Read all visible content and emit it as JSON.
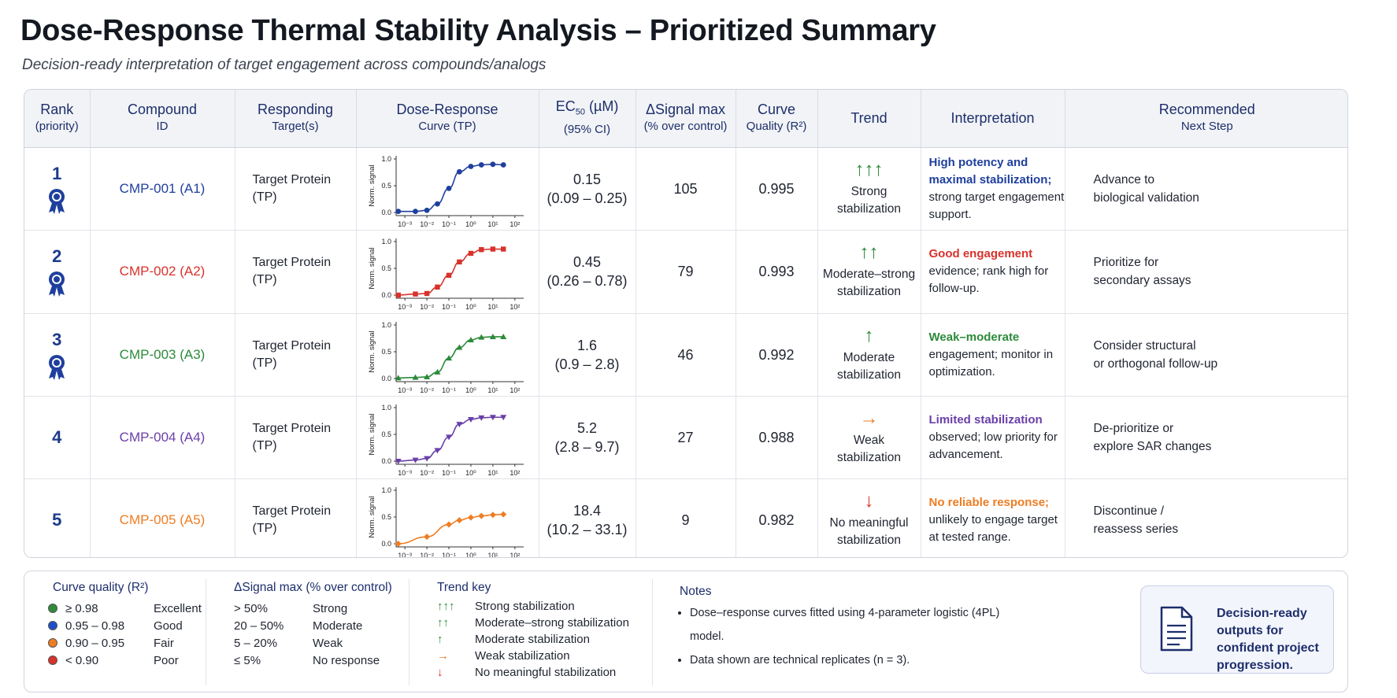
{
  "title": "Dose-Response Thermal Stability Analysis – Prioritized Summary",
  "subtitle": "Decision-ready interpretation of target engagement across compounds/analogs",
  "headers": {
    "rank": [
      "Rank",
      "(priority)"
    ],
    "compound": [
      "Compound",
      "ID"
    ],
    "target": [
      "Responding",
      "Target(s)"
    ],
    "curve": [
      "Dose-Response",
      "Curve (TP)"
    ],
    "ec50_pre": "EC",
    "ec50_sub": "50",
    "ec50_post": " (µM)",
    "ec50_ci": "(95% CI)",
    "signal": [
      "ΔSignal max",
      "(% over control)"
    ],
    "quality": [
      "Curve",
      "Quality (R²)"
    ],
    "trend": "Trend",
    "interp": "Interpretation",
    "next": [
      "Recommended",
      "Next Step"
    ]
  },
  "rows": [
    {
      "rank": "1",
      "award": true,
      "id": "CMP-001 (A1)",
      "color": "#1f3f9e",
      "target1": "Target Protein",
      "target2": "(TP)",
      "ec50": "0.15",
      "ci": "(0.09 – 0.25)",
      "signal": "105",
      "r2": "0.995",
      "arrows": "↑↑↑",
      "arrow_color": "#2e8b3a",
      "trend1": "Strong",
      "trend2": "stabilization",
      "interp_lead": "High potency and maximal stabilization;",
      "interp_rest": "strong target engagement support.",
      "interp_color": "#1f3f9e",
      "next1": "Advance to",
      "next2": "biological validation"
    },
    {
      "rank": "2",
      "award": true,
      "id": "CMP-002 (A2)",
      "color": "#d8322b",
      "target1": "Target Protein",
      "target2": "(TP)",
      "ec50": "0.45",
      "ci": "(0.26 – 0.78)",
      "signal": "79",
      "r2": "0.993",
      "arrows": "↑↑",
      "arrow_color": "#2e8b3a",
      "trend1": "Moderate–strong",
      "trend2": "stabilization",
      "interp_lead": "Good engagement",
      "interp_rest": "evidence; rank high for follow-up.",
      "interp_color": "#d8322b",
      "next1": "Prioritize for",
      "next2": "secondary assays"
    },
    {
      "rank": "3",
      "award": true,
      "id": "CMP-003 (A3)",
      "color": "#2b8a3a",
      "target1": "Target Protein",
      "target2": "(TP)",
      "ec50": "1.6",
      "ci": "(0.9 – 2.8)",
      "signal": "46",
      "r2": "0.992",
      "arrows": "↑",
      "arrow_color": "#2e8b3a",
      "trend1": "Moderate",
      "trend2": "stabilization",
      "interp_lead": "Weak–moderate",
      "interp_rest": "engagement; monitor in optimization.",
      "interp_color": "#2b8a3a",
      "next1": "Consider structural",
      "next2": "or orthogonal follow-up"
    },
    {
      "rank": "4",
      "award": false,
      "id": "CMP-004 (A4)",
      "color": "#6a3fa8",
      "target1": "Target Protein",
      "target2": "(TP)",
      "ec50": "5.2",
      "ci": "(2.8 – 9.7)",
      "signal": "27",
      "r2": "0.988",
      "arrows": "→",
      "arrow_color": "#ee7d22",
      "trend1": "Weak",
      "trend2": "stabilization",
      "interp_lead": "Limited stabilization",
      "interp_rest": "observed; low priority for advancement.",
      "interp_color": "#6a3fa8",
      "next1": "De-prioritize or",
      "next2": "explore SAR changes"
    },
    {
      "rank": "5",
      "award": false,
      "id": "CMP-005 (A5)",
      "color": "#ee7d22",
      "target1": "Target Protein",
      "target2": "(TP)",
      "ec50": "18.4",
      "ci": "(10.2 – 33.1)",
      "signal": "9",
      "r2": "0.982",
      "arrows": "↓",
      "arrow_color": "#d8322b",
      "trend1": "No meaningful",
      "trend2": "stabilization",
      "interp_lead": "No reliable response;",
      "interp_rest": "unlikely to engage target at tested range.",
      "interp_color": "#ee7d22",
      "next1": "Discontinue /",
      "next2": "reassess series"
    }
  ],
  "chart_data": [
    {
      "type": "scatter",
      "ylabel": "Norm. signal",
      "ylim": [
        0,
        1.0
      ],
      "yticks": [
        "0.0",
        "0.5",
        "1.0"
      ],
      "xscale": "log",
      "xticks": [
        -3,
        -2,
        -1,
        0,
        1,
        2
      ],
      "marker": "circle",
      "color": "#1f3f9e",
      "x": [
        0.0005,
        0.003,
        0.01,
        0.03,
        0.1,
        0.3,
        1,
        3,
        10,
        30
      ],
      "y": [
        0.02,
        0.02,
        0.04,
        0.16,
        0.45,
        0.76,
        0.86,
        0.89,
        0.9,
        0.89
      ]
    },
    {
      "type": "scatter",
      "ylabel": "Norm. signal",
      "ylim": [
        0,
        1.0
      ],
      "yticks": [
        "0.0",
        "0.5",
        "1.0"
      ],
      "xscale": "log",
      "xticks": [
        -3,
        -2,
        -1,
        0,
        1,
        2
      ],
      "marker": "square",
      "color": "#d8322b",
      "x": [
        0.0005,
        0.003,
        0.01,
        0.03,
        0.1,
        0.3,
        1,
        3,
        10,
        30
      ],
      "y": [
        0.0,
        0.02,
        0.03,
        0.15,
        0.37,
        0.62,
        0.78,
        0.85,
        0.86,
        0.86
      ]
    },
    {
      "type": "scatter",
      "ylabel": "Norm. signal",
      "ylim": [
        0,
        1.0
      ],
      "yticks": [
        "0.0",
        "0.5",
        "1.0"
      ],
      "xscale": "log",
      "xticks": [
        -3,
        -2,
        -1,
        0,
        1,
        2
      ],
      "marker": "triangle-up",
      "color": "#2b8a3a",
      "x": [
        0.0005,
        0.003,
        0.01,
        0.03,
        0.1,
        0.3,
        1,
        3,
        10,
        30
      ],
      "y": [
        0.01,
        0.02,
        0.03,
        0.12,
        0.38,
        0.58,
        0.72,
        0.77,
        0.78,
        0.78
      ]
    },
    {
      "type": "scatter",
      "ylabel": "Norm. signal",
      "ylim": [
        0,
        1.0
      ],
      "yticks": [
        "0.0",
        "0.5",
        "1.0"
      ],
      "xscale": "log",
      "xticks": [
        -3,
        -2,
        -1,
        0,
        1,
        2
      ],
      "marker": "triangle-down",
      "color": "#6a3fa8",
      "x": [
        0.0005,
        0.003,
        0.01,
        0.03,
        0.1,
        0.3,
        1,
        3,
        10,
        30
      ],
      "y": [
        0.0,
        0.02,
        0.05,
        0.2,
        0.45,
        0.69,
        0.78,
        0.81,
        0.82,
        0.82
      ]
    },
    {
      "type": "scatter",
      "ylabel": "Norm. signal",
      "ylim": [
        0,
        1.0
      ],
      "yticks": [
        "0.0",
        "0.5",
        "1.0"
      ],
      "xscale": "log",
      "xticks": [
        -3,
        -2,
        -1,
        0,
        1,
        2
      ],
      "marker": "diamond",
      "color": "#ee7d22",
      "x": [
        0.0005,
        0.01,
        0.1,
        0.3,
        1,
        3,
        10,
        30
      ],
      "y": [
        0.0,
        0.13,
        0.36,
        0.44,
        0.49,
        0.52,
        0.54,
        0.55
      ]
    }
  ],
  "legend": {
    "quality_title": "Curve quality (R²)",
    "quality": [
      {
        "range": "≥ 0.98",
        "label": "Excellent",
        "color": "#2e8b3a"
      },
      {
        "range": "0.95 – 0.98",
        "label": "Good",
        "color": "#1f4fc8"
      },
      {
        "range": "0.90 – 0.95",
        "label": "Fair",
        "color": "#ee7d22"
      },
      {
        "range": "< 0.90",
        "label": "Poor",
        "color": "#d8322b"
      }
    ],
    "signal_title": "ΔSignal max (% over control)",
    "signal": [
      {
        "range": "> 50%",
        "label": "Strong"
      },
      {
        "range": "20 – 50%",
        "label": "Moderate"
      },
      {
        "range": "5 – 20%",
        "label": "Weak"
      },
      {
        "range": "≤ 5%",
        "label": "No response"
      }
    ],
    "trend_title": "Trend key",
    "trend": [
      {
        "arrows": "↑↑↑",
        "label": "Strong stabilization",
        "color": "#2e8b3a"
      },
      {
        "arrows": "↑↑",
        "label": "Moderate–strong stabilization",
        "color": "#2e8b3a"
      },
      {
        "arrows": "↑",
        "label": "Moderate stabilization",
        "color": "#2e8b3a"
      },
      {
        "arrows": "→",
        "label": "Weak stabilization",
        "color": "#ee7d22"
      },
      {
        "arrows": "↓",
        "label": "No meaningful stabilization",
        "color": "#d8322b"
      }
    ],
    "notes_title": "Notes",
    "notes": [
      "Dose–response curves fitted using 4-parameter logistic (4PL) model.",
      "Data shown are technical replicates (n = 3)."
    ],
    "callout": "Decision-ready outputs for confident project progression."
  }
}
